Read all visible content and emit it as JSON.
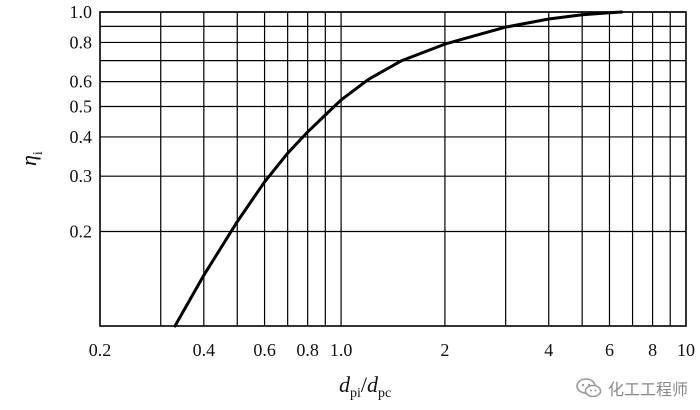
{
  "chart_data": {
    "type": "line",
    "x_scale": "log",
    "y_scale": "log",
    "xlim": [
      0.2,
      10
    ],
    "ylim": [
      0.1,
      1.0
    ],
    "grid": true,
    "x_ticks": [
      {
        "value": 0.2,
        "label": "0.2"
      },
      {
        "value": 0.4,
        "label": "0.4"
      },
      {
        "value": 0.6,
        "label": "0.6"
      },
      {
        "value": 0.8,
        "label": "0.8"
      },
      {
        "value": 1.0,
        "label": "1.0"
      },
      {
        "value": 2,
        "label": "2"
      },
      {
        "value": 4,
        "label": "4"
      },
      {
        "value": 6,
        "label": "6"
      },
      {
        "value": 8,
        "label": "8"
      },
      {
        "value": 10,
        "label": "10"
      }
    ],
    "x_grid_lines": [
      0.3,
      0.4,
      0.5,
      0.6,
      0.7,
      0.8,
      0.9,
      1.0,
      2,
      3,
      4,
      5,
      6,
      7,
      8,
      9
    ],
    "y_ticks": [
      {
        "value": 0.2,
        "label": "0.2"
      },
      {
        "value": 0.3,
        "label": "0.3"
      },
      {
        "value": 0.4,
        "label": "0.4"
      },
      {
        "value": 0.5,
        "label": "0.5"
      },
      {
        "value": 0.6,
        "label": "0.6"
      },
      {
        "value": 0.8,
        "label": "0.8"
      },
      {
        "value": 1.0,
        "label": "1.0"
      }
    ],
    "y_grid_lines": [
      0.2,
      0.3,
      0.4,
      0.5,
      0.6,
      0.7,
      0.8,
      0.9,
      1.0
    ],
    "xlabel": {
      "main1": "d",
      "sub1": "pi",
      "sep": "/",
      "main2": "d",
      "sub2": "pc"
    },
    "ylabel": {
      "main": "η",
      "sub": "i"
    },
    "series": [
      {
        "x": [
          0.33,
          0.4,
          0.5,
          0.6,
          0.7,
          0.8,
          0.9,
          1.0,
          1.2,
          1.5,
          2,
          3,
          4,
          5,
          6,
          6.5
        ],
        "y": [
          0.1,
          0.145,
          0.215,
          0.288,
          0.355,
          0.415,
          0.47,
          0.525,
          0.61,
          0.7,
          0.79,
          0.895,
          0.95,
          0.98,
          0.995,
          1.0
        ]
      }
    ]
  },
  "watermark": {
    "text": "化工工程师",
    "icon": "wechat-icon"
  }
}
